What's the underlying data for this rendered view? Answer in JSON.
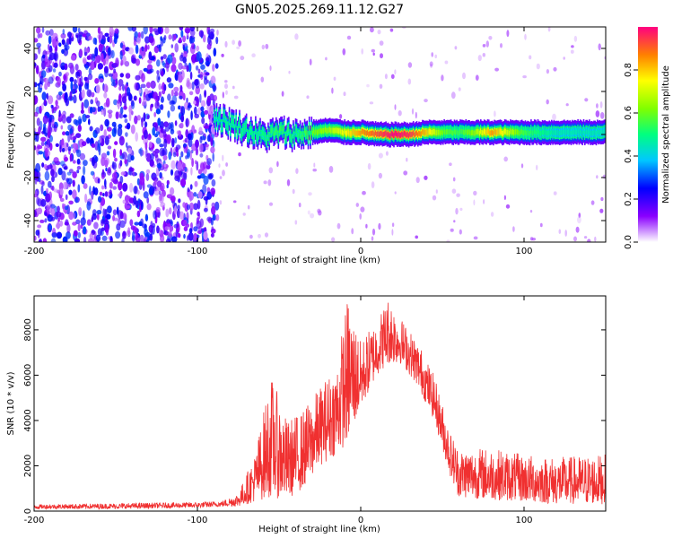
{
  "chart_data": [
    {
      "type": "heatmap",
      "title": "GN05.2025.269.11.12.G27",
      "xlabel": "Height of straight line (km)",
      "ylabel": "Frequency (Hz)",
      "xlim": [
        -200,
        150
      ],
      "ylim": [
        -50,
        50
      ],
      "xticks": [
        "-200",
        "-100",
        "0",
        "100"
      ],
      "yticks": [
        "-40",
        "-20",
        "0",
        "20",
        "40"
      ],
      "colorbar": {
        "label": "Normalized spectral amplitude",
        "range": [
          0,
          1
        ],
        "ticks": [
          "0.0",
          "0.2",
          "0.4",
          "0.6",
          "0.8"
        ]
      },
      "ridge": [
        {
          "x": -90,
          "y": 8,
          "amp": 0.45
        },
        {
          "x": -80,
          "y": 5,
          "amp": 0.5
        },
        {
          "x": -70,
          "y": 2,
          "amp": 0.5
        },
        {
          "x": -60,
          "y": -1,
          "amp": 0.5
        },
        {
          "x": -50,
          "y": 1,
          "amp": 0.55
        },
        {
          "x": -40,
          "y": 0,
          "amp": 0.5
        },
        {
          "x": -30,
          "y": 1,
          "amp": 0.6
        },
        {
          "x": -20,
          "y": 2,
          "amp": 0.65
        },
        {
          "x": -10,
          "y": 1,
          "amp": 0.75
        },
        {
          "x": 0,
          "y": 1,
          "amp": 0.85
        },
        {
          "x": 10,
          "y": 0,
          "amp": 0.92
        },
        {
          "x": 20,
          "y": 0,
          "amp": 1.0
        },
        {
          "x": 30,
          "y": 0,
          "amp": 0.95
        },
        {
          "x": 40,
          "y": 1,
          "amp": 0.8
        },
        {
          "x": 50,
          "y": 1,
          "amp": 0.6
        },
        {
          "x": 60,
          "y": 1,
          "amp": 0.55
        },
        {
          "x": 70,
          "y": 1,
          "amp": 0.65
        },
        {
          "x": 80,
          "y": 1,
          "amp": 0.85
        },
        {
          "x": 90,
          "y": 1,
          "amp": 0.7
        },
        {
          "x": 100,
          "y": 1,
          "amp": 0.55
        },
        {
          "x": 110,
          "y": 1,
          "amp": 0.5
        },
        {
          "x": 120,
          "y": 1,
          "amp": 0.45
        },
        {
          "x": 130,
          "y": 1,
          "amp": 0.45
        },
        {
          "x": 140,
          "y": 1,
          "amp": 0.45
        },
        {
          "x": 150,
          "y": 1,
          "amp": 0.45
        }
      ]
    },
    {
      "type": "line",
      "xlabel": "Height of straight line (km)",
      "ylabel": "SNR (10 * v/v)",
      "xlim": [
        -200,
        150
      ],
      "ylim": [
        0,
        9500
      ],
      "xticks": [
        "-200",
        "-100",
        "0",
        "100"
      ],
      "yticks": [
        "0",
        "2000",
        "4000",
        "6000",
        "8000"
      ],
      "series_color": "#f03030",
      "envelope": [
        {
          "x": -200,
          "low": 100,
          "high": 300
        },
        {
          "x": -150,
          "low": 100,
          "high": 350
        },
        {
          "x": -100,
          "low": 150,
          "high": 400
        },
        {
          "x": -85,
          "low": 200,
          "high": 450
        },
        {
          "x": -75,
          "low": 200,
          "high": 800
        },
        {
          "x": -65,
          "low": 400,
          "high": 2500
        },
        {
          "x": -55,
          "low": 600,
          "high": 6000
        },
        {
          "x": -45,
          "low": 500,
          "high": 4000
        },
        {
          "x": -35,
          "low": 1000,
          "high": 4500
        },
        {
          "x": -25,
          "low": 2000,
          "high": 5500
        },
        {
          "x": -15,
          "low": 2500,
          "high": 6500
        },
        {
          "x": -8,
          "low": 3000,
          "high": 9500
        },
        {
          "x": 0,
          "low": 4500,
          "high": 7500
        },
        {
          "x": 10,
          "low": 6000,
          "high": 8500
        },
        {
          "x": 17,
          "low": 6500,
          "high": 9500
        },
        {
          "x": 25,
          "low": 6500,
          "high": 8500
        },
        {
          "x": 35,
          "low": 5500,
          "high": 7500
        },
        {
          "x": 45,
          "low": 4000,
          "high": 6000
        },
        {
          "x": 55,
          "low": 1500,
          "high": 3500
        },
        {
          "x": 60,
          "low": 600,
          "high": 2800
        },
        {
          "x": 80,
          "low": 500,
          "high": 2800
        },
        {
          "x": 100,
          "low": 400,
          "high": 2500
        },
        {
          "x": 120,
          "low": 300,
          "high": 2400
        },
        {
          "x": 150,
          "low": 300,
          "high": 2500
        }
      ]
    }
  ]
}
